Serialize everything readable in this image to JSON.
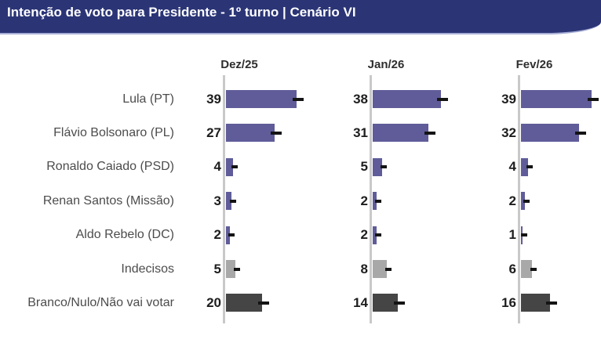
{
  "banner": {
    "title": "Intenção de voto para Presidente - 1º turno | Cenário VI",
    "bg_color": "#2b3576",
    "text_color": "#ffffff"
  },
  "chart_data": {
    "type": "bar",
    "orientation": "horizontal",
    "title": "Intenção de voto para Presidente - 1º turno | Cenário VI",
    "categories": [
      "Lula (PT)",
      "Flávio Bolsonaro (PL)",
      "Ronaldo Caiado (PSD)",
      "Renan Santos (Missão)",
      "Aldo Rebelo (DC)",
      "Indecisos",
      "Branco/Nulo/Não vai votar"
    ],
    "series": [
      {
        "name": "Dez/25",
        "values": [
          39,
          27,
          4,
          3,
          2,
          5,
          20
        ]
      },
      {
        "name": "Jan/26",
        "values": [
          38,
          31,
          5,
          2,
          2,
          8,
          14
        ]
      },
      {
        "name": "Fev/26",
        "values": [
          39,
          32,
          4,
          2,
          1,
          6,
          16
        ]
      }
    ],
    "unit": "%",
    "value_labels_shown": true,
    "error_bars_shown": true,
    "xlim": [
      0,
      45
    ],
    "grid": false,
    "bar_colors": {
      "candidate": "#5f5c99",
      "undecided": "#a8a8a8",
      "blank_null": "#454545"
    },
    "row_color_keys": [
      "candidate",
      "candidate",
      "candidate",
      "candidate",
      "candidate",
      "undecided",
      "blank_null"
    ],
    "axis_color": "#c9c9c9",
    "error_bar_color": "#141414",
    "value_text_color": "#1d1d1d",
    "category_text_color": "#4c4c4c"
  }
}
